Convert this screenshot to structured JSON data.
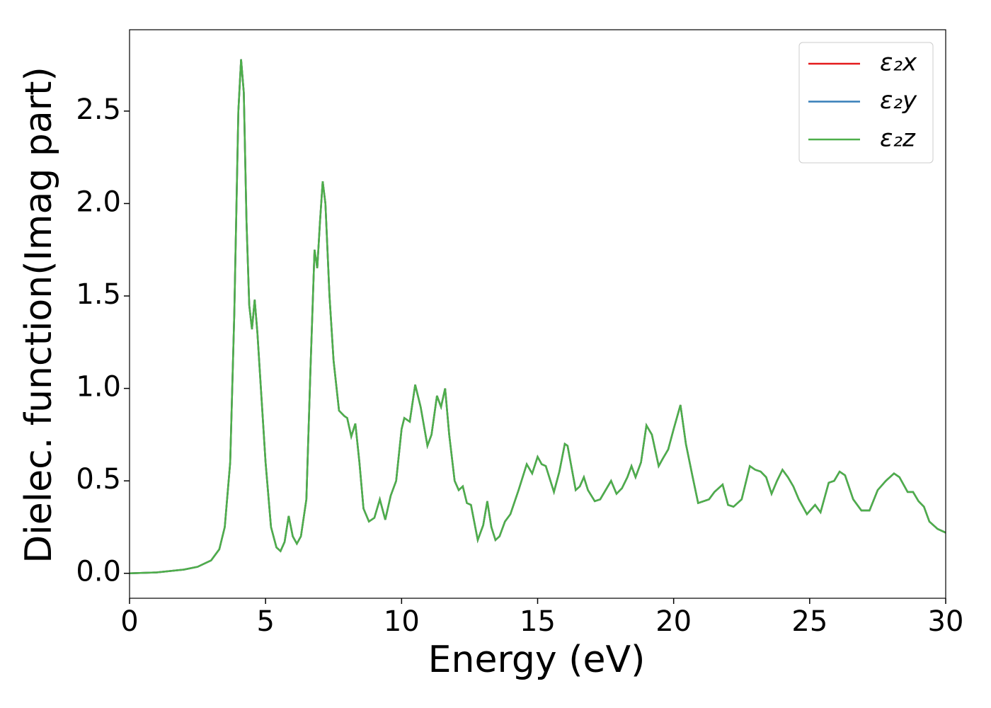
{
  "chart_data": {
    "type": "line",
    "xlabel": "Energy (eV)",
    "ylabel": "Dielec. function(Imag part)",
    "xlim": [
      0,
      30
    ],
    "xticks": [
      0,
      5,
      10,
      15,
      20,
      25,
      30
    ],
    "ylim": [
      -0.135,
      2.94
    ],
    "yticks": [
      {
        "value": 0,
        "label": "0.0"
      },
      {
        "value": 0.5,
        "label": "0.5"
      },
      {
        "value": 1,
        "label": "1.0"
      },
      {
        "value": 1.5,
        "label": "1.5"
      },
      {
        "value": 2,
        "label": "2.0"
      },
      {
        "value": 2.5,
        "label": "2.5"
      }
    ],
    "legend": "upper right",
    "x": [
      0,
      1,
      2,
      2.5,
      3,
      3.3,
      3.5,
      3.7,
      3.85,
      4.0,
      4.1,
      4.2,
      4.3,
      4.4,
      4.5,
      4.6,
      4.7,
      4.85,
      5.0,
      5.2,
      5.4,
      5.55,
      5.7,
      5.85,
      6.0,
      6.15,
      6.3,
      6.5,
      6.65,
      6.8,
      6.9,
      7.0,
      7.1,
      7.2,
      7.35,
      7.5,
      7.7,
      7.9,
      8.0,
      8.15,
      8.3,
      8.45,
      8.6,
      8.8,
      9.0,
      9.2,
      9.4,
      9.6,
      9.8,
      10.0,
      10.1,
      10.3,
      10.5,
      10.7,
      10.95,
      11.1,
      11.3,
      11.45,
      11.6,
      11.75,
      11.95,
      12.1,
      12.25,
      12.4,
      12.55,
      12.8,
      13.0,
      13.15,
      13.3,
      13.45,
      13.6,
      13.8,
      14.0,
      14.3,
      14.6,
      14.8,
      15.0,
      15.15,
      15.3,
      15.6,
      15.8,
      16.0,
      16.1,
      16.4,
      16.55,
      16.7,
      16.85,
      17.1,
      17.3,
      17.7,
      17.9,
      18.1,
      18.3,
      18.45,
      18.6,
      18.8,
      19.0,
      19.2,
      19.45,
      19.6,
      19.8,
      20.0,
      20.25,
      20.45,
      20.7,
      20.9,
      21.1,
      21.3,
      21.5,
      21.8,
      22.0,
      22.2,
      22.5,
      22.8,
      23.0,
      23.2,
      23.4,
      23.6,
      23.8,
      24.0,
      24.2,
      24.4,
      24.6,
      24.9,
      25.2,
      25.4,
      25.7,
      25.9,
      26.1,
      26.3,
      26.6,
      26.9,
      27.2,
      27.5,
      27.8,
      28.1,
      28.3,
      28.6,
      28.8,
      29.0,
      29.2,
      29.4,
      29.7,
      30
    ],
    "series": [
      {
        "name": "ε₂x",
        "color": "#e41a1c",
        "values": [
          0,
          0.005,
          0.02,
          0.035,
          0.07,
          0.13,
          0.25,
          0.6,
          1.4,
          2.5,
          2.78,
          2.6,
          1.9,
          1.45,
          1.32,
          1.48,
          1.3,
          0.95,
          0.6,
          0.25,
          0.14,
          0.12,
          0.17,
          0.31,
          0.2,
          0.16,
          0.2,
          0.4,
          1.1,
          1.75,
          1.65,
          1.9,
          2.12,
          2.0,
          1.5,
          1.15,
          0.88,
          0.85,
          0.84,
          0.74,
          0.81,
          0.6,
          0.35,
          0.28,
          0.3,
          0.4,
          0.29,
          0.42,
          0.5,
          0.78,
          0.84,
          0.82,
          1.02,
          0.9,
          0.69,
          0.75,
          0.96,
          0.9,
          1.0,
          0.75,
          0.5,
          0.45,
          0.47,
          0.38,
          0.37,
          0.18,
          0.26,
          0.39,
          0.25,
          0.18,
          0.2,
          0.28,
          0.32,
          0.45,
          0.59,
          0.54,
          0.63,
          0.59,
          0.58,
          0.44,
          0.55,
          0.7,
          0.69,
          0.45,
          0.47,
          0.52,
          0.45,
          0.39,
          0.4,
          0.5,
          0.43,
          0.46,
          0.52,
          0.58,
          0.52,
          0.6,
          0.8,
          0.75,
          0.58,
          0.62,
          0.67,
          0.78,
          0.91,
          0.7,
          0.52,
          0.38,
          0.39,
          0.4,
          0.44,
          0.48,
          0.37,
          0.36,
          0.4,
          0.58,
          0.56,
          0.55,
          0.52,
          0.43,
          0.5,
          0.56,
          0.52,
          0.47,
          0.4,
          0.32,
          0.37,
          0.33,
          0.49,
          0.5,
          0.55,
          0.53,
          0.4,
          0.34,
          0.34,
          0.45,
          0.5,
          0.54,
          0.52,
          0.44,
          0.44,
          0.39,
          0.36,
          0.28,
          0.24,
          0.22
        ]
      },
      {
        "name": "ε₂y",
        "color": "#377eb8",
        "values": [
          0,
          0.005,
          0.02,
          0.035,
          0.07,
          0.13,
          0.25,
          0.6,
          1.4,
          2.5,
          2.78,
          2.6,
          1.9,
          1.45,
          1.32,
          1.48,
          1.3,
          0.95,
          0.6,
          0.25,
          0.14,
          0.12,
          0.17,
          0.31,
          0.2,
          0.16,
          0.2,
          0.4,
          1.1,
          1.75,
          1.65,
          1.9,
          2.12,
          2.0,
          1.5,
          1.15,
          0.88,
          0.85,
          0.84,
          0.74,
          0.81,
          0.6,
          0.35,
          0.28,
          0.3,
          0.4,
          0.29,
          0.42,
          0.5,
          0.78,
          0.84,
          0.82,
          1.02,
          0.9,
          0.69,
          0.75,
          0.96,
          0.9,
          1.0,
          0.75,
          0.5,
          0.45,
          0.47,
          0.38,
          0.37,
          0.18,
          0.26,
          0.39,
          0.25,
          0.18,
          0.2,
          0.28,
          0.32,
          0.45,
          0.59,
          0.54,
          0.63,
          0.59,
          0.58,
          0.44,
          0.55,
          0.7,
          0.69,
          0.45,
          0.47,
          0.52,
          0.45,
          0.39,
          0.4,
          0.5,
          0.43,
          0.46,
          0.52,
          0.58,
          0.52,
          0.6,
          0.8,
          0.75,
          0.58,
          0.62,
          0.67,
          0.78,
          0.91,
          0.7,
          0.52,
          0.38,
          0.39,
          0.4,
          0.44,
          0.48,
          0.37,
          0.36,
          0.4,
          0.58,
          0.56,
          0.55,
          0.52,
          0.43,
          0.5,
          0.56,
          0.52,
          0.47,
          0.4,
          0.32,
          0.37,
          0.33,
          0.49,
          0.5,
          0.55,
          0.53,
          0.4,
          0.34,
          0.34,
          0.45,
          0.5,
          0.54,
          0.52,
          0.44,
          0.44,
          0.39,
          0.36,
          0.28,
          0.24,
          0.22
        ]
      },
      {
        "name": "ε₂z",
        "color": "#4daf4a",
        "values": [
          0,
          0.005,
          0.02,
          0.035,
          0.07,
          0.13,
          0.25,
          0.6,
          1.4,
          2.5,
          2.78,
          2.6,
          1.9,
          1.45,
          1.32,
          1.48,
          1.3,
          0.95,
          0.6,
          0.25,
          0.14,
          0.12,
          0.17,
          0.31,
          0.2,
          0.16,
          0.2,
          0.4,
          1.1,
          1.75,
          1.65,
          1.9,
          2.12,
          2.0,
          1.5,
          1.15,
          0.88,
          0.85,
          0.84,
          0.74,
          0.81,
          0.6,
          0.35,
          0.28,
          0.3,
          0.4,
          0.29,
          0.42,
          0.5,
          0.78,
          0.84,
          0.82,
          1.02,
          0.9,
          0.69,
          0.75,
          0.96,
          0.9,
          1.0,
          0.75,
          0.5,
          0.45,
          0.47,
          0.38,
          0.37,
          0.18,
          0.26,
          0.39,
          0.25,
          0.18,
          0.2,
          0.28,
          0.32,
          0.45,
          0.59,
          0.54,
          0.63,
          0.59,
          0.58,
          0.44,
          0.55,
          0.7,
          0.69,
          0.45,
          0.47,
          0.52,
          0.45,
          0.39,
          0.4,
          0.5,
          0.43,
          0.46,
          0.52,
          0.58,
          0.52,
          0.6,
          0.8,
          0.75,
          0.58,
          0.62,
          0.67,
          0.78,
          0.91,
          0.7,
          0.52,
          0.38,
          0.39,
          0.4,
          0.44,
          0.48,
          0.37,
          0.36,
          0.4,
          0.58,
          0.56,
          0.55,
          0.52,
          0.43,
          0.5,
          0.56,
          0.52,
          0.47,
          0.4,
          0.32,
          0.37,
          0.33,
          0.49,
          0.5,
          0.55,
          0.53,
          0.4,
          0.34,
          0.34,
          0.45,
          0.5,
          0.54,
          0.52,
          0.44,
          0.44,
          0.39,
          0.36,
          0.28,
          0.24,
          0.22
        ]
      }
    ]
  }
}
